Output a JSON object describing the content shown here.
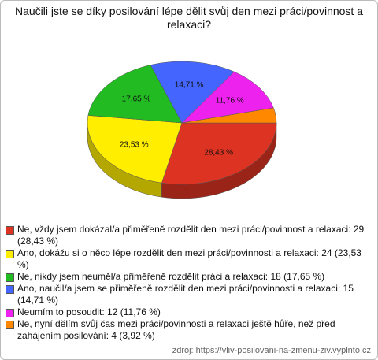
{
  "chart_data": {
    "type": "pie3d",
    "title": "Naučili jste se díky posilování lépe dělit svůj den mezi práci/povinnost a relaxaci?",
    "categories": [
      "Ne, vždy jsem dokázal/a přiměřeně rozdělit den mezi práci/povinnost a relaxaci: 29 (28,43 %)",
      "Ano, dokážu si o něco lépe rozdělit den mezi práci/povinnosti a relaxaci: 24 (23,53 %)",
      "Ne, nikdy jsem neuměl/a přiměřeně rozdělit práci a relaxaci: 18 (17,65 %)",
      "Ano, naučil/a jsem se přiměřeně rozdělit den mezi práci/povinnosti a relaxaci: 15 (14,71 %)",
      "Neumím to posoudit: 12 (11,76 %)",
      "Ne, nyní dělím svůj čas mezi práci/povinnosti a relaxaci ještě hůře, než před zahájením posilování: 4 (3,92 %)"
    ],
    "values": [
      28.43,
      23.53,
      17.65,
      14.71,
      11.76,
      3.92
    ],
    "value_labels": [
      "28,43 %",
      "23,53 %",
      "17,65 %",
      "14,71 %",
      "11,76 %",
      "3,92 %"
    ],
    "colors": [
      "#dd3322",
      "#ffee00",
      "#22bb22",
      "#4466ff",
      "#ee22ee",
      "#ff8800"
    ],
    "show_value_labels": [
      true,
      true,
      true,
      true,
      true,
      false
    ],
    "source": "zdroj: https://vliv-posilovani-na-zmenu-ziv.vyplnto.cz"
  }
}
